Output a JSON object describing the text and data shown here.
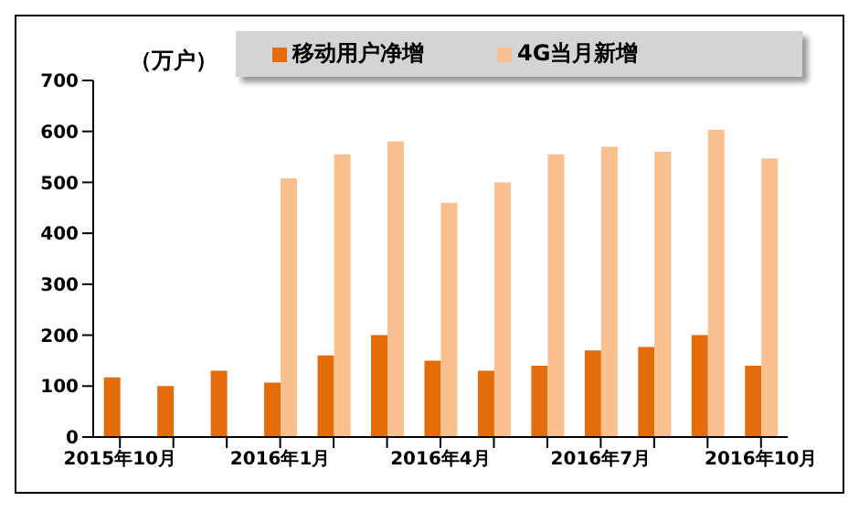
{
  "chart_data": {
    "type": "bar",
    "categories": [
      "2015年10月",
      null,
      null,
      "2016年1月",
      null,
      null,
      "2016年4月",
      null,
      null,
      "2016年7月",
      null,
      null,
      "2016年10月"
    ],
    "series": [
      {
        "name": "移动用户净增",
        "color": "#e46c0a",
        "values": [
          117,
          100,
          130,
          107,
          160,
          200,
          150,
          130,
          140,
          170,
          177,
          200,
          140
        ]
      },
      {
        "name": "4G当月新增",
        "color": "#fac090",
        "values": [
          null,
          null,
          null,
          508,
          555,
          580,
          460,
          500,
          555,
          570,
          560,
          603,
          547
        ]
      }
    ],
    "ylim": [
      0,
      700
    ],
    "yticks": [
      0,
      100,
      200,
      300,
      400,
      500,
      600,
      700
    ],
    "grid": false,
    "legend": "top",
    "annotations": [
      "（万户）"
    ]
  }
}
